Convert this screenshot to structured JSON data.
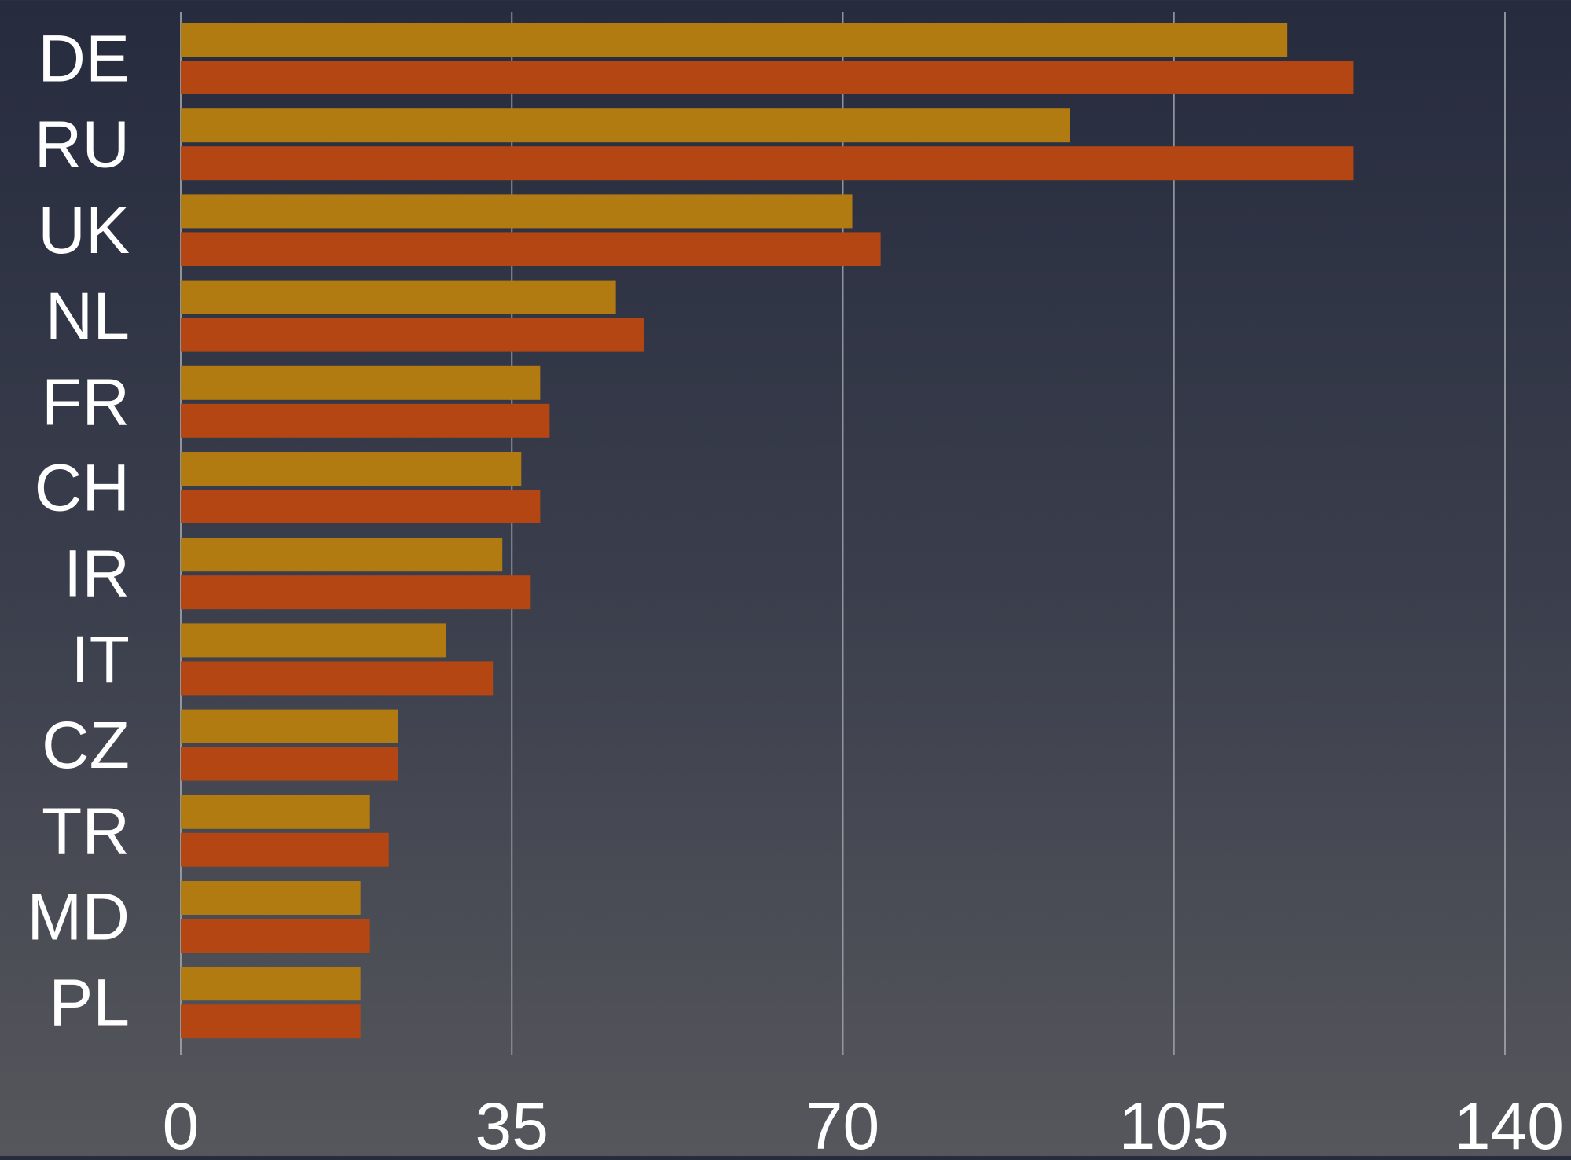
{
  "chart_data": {
    "type": "bar",
    "orientation": "horizontal",
    "title": "",
    "xlabel": "",
    "ylabel": "",
    "categories": [
      "DE",
      "RU",
      "UK",
      "NL",
      "FR",
      "CH",
      "IR",
      "IT",
      "CZ",
      "TR",
      "MD",
      "PL"
    ],
    "series": [
      {
        "color": "#b27b12",
        "values": [
          117,
          94,
          71,
          46,
          38,
          36,
          34,
          28,
          23,
          20,
          19,
          19
        ]
      },
      {
        "color": "#b34612",
        "values": [
          124,
          124,
          74,
          49,
          39,
          38,
          37,
          33,
          23,
          22,
          20,
          19
        ]
      }
    ],
    "xlim": [
      0,
      140
    ],
    "xticks": [
      0,
      35,
      70,
      105,
      140
    ],
    "grid": true,
    "legend": "none",
    "text_color": "#ffffff",
    "grid_color": "#a0a3aa"
  }
}
